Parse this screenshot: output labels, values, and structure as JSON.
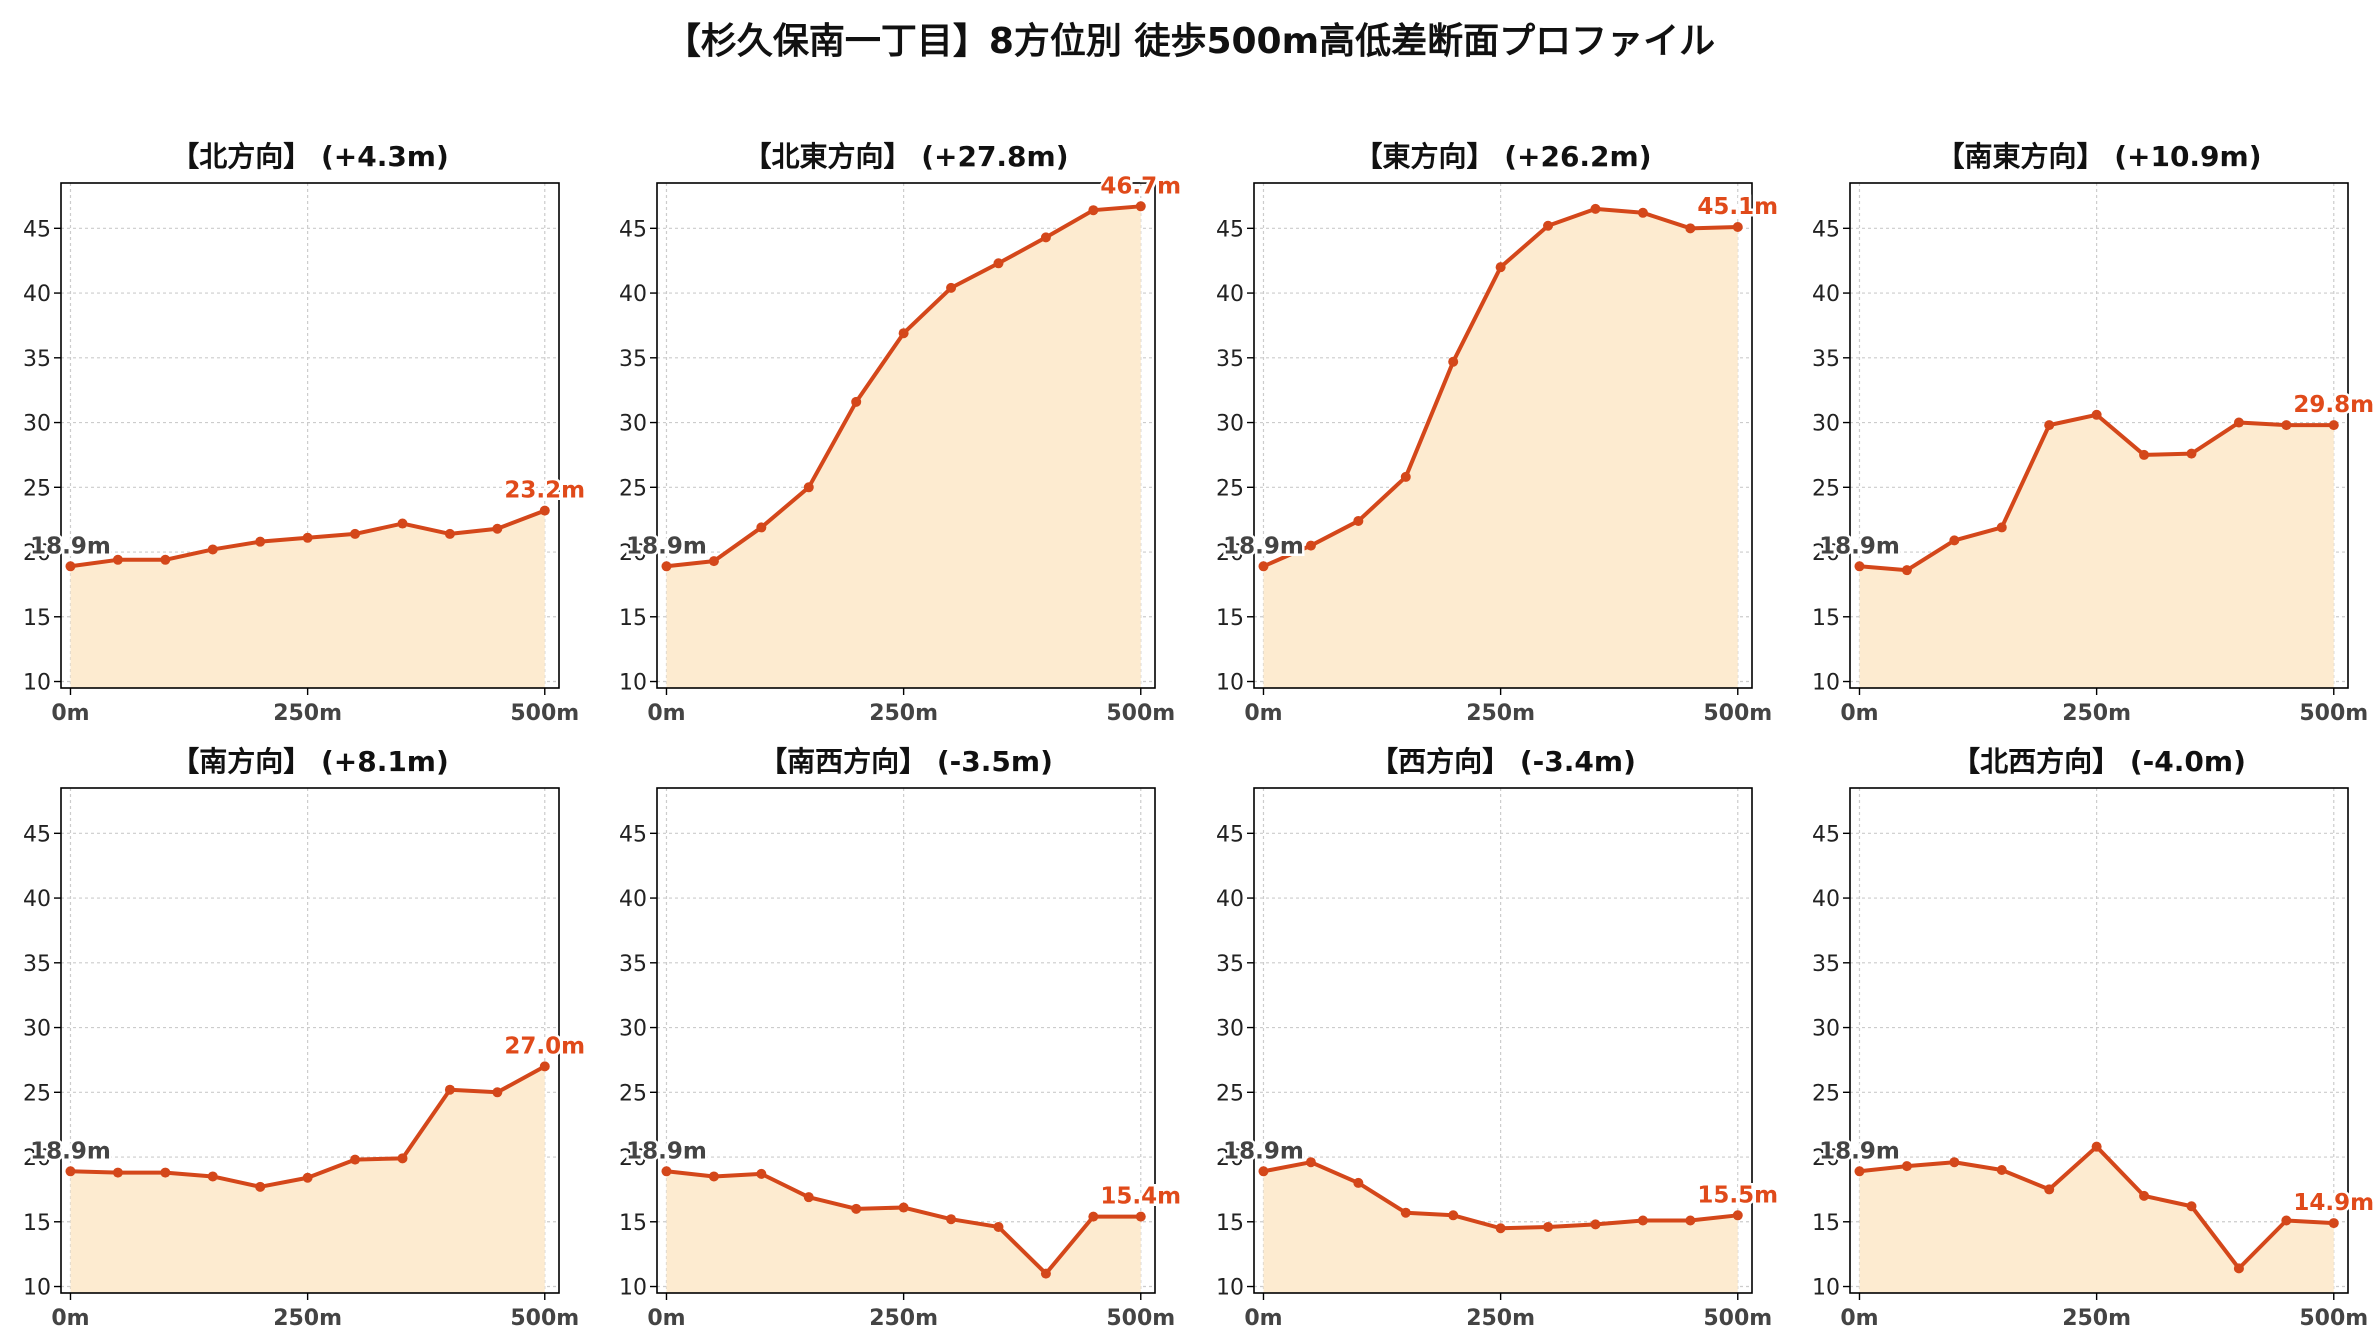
{
  "title": "【杉久保南一丁目】8方位別 徒歩500m高低差断面プロファイル",
  "colors": {
    "line": "#d4471a",
    "fill": "#fdebd0",
    "start_label": "#444444",
    "end_label": "#e04a1a",
    "grid": "#cccccc"
  },
  "chart_data": [
    {
      "type": "area",
      "title": "【北方向】 (+4.3m)",
      "x": [
        0,
        50,
        100,
        150,
        200,
        250,
        300,
        350,
        400,
        450,
        500
      ],
      "xticks": [
        0,
        250,
        500
      ],
      "xtick_labels": [
        "0m",
        "250m",
        "500m"
      ],
      "yticks": [
        10,
        15,
        20,
        25,
        30,
        35,
        40,
        45
      ],
      "ytick_labels": [
        "10",
        "15",
        "20",
        "25",
        "30",
        "35",
        "40",
        "45"
      ],
      "ylim": [
        9.5,
        48.5
      ],
      "xlim": [
        -10,
        515
      ],
      "grid": true,
      "start_label": "18.9m",
      "end_label": "23.2m",
      "values": [
        18.9,
        19.4,
        19.4,
        20.2,
        20.8,
        21.1,
        21.4,
        22.2,
        21.4,
        21.8,
        23.2
      ]
    },
    {
      "type": "area",
      "title": "【北東方向】 (+27.8m)",
      "x": [
        0,
        50,
        100,
        150,
        200,
        250,
        300,
        350,
        400,
        450,
        500
      ],
      "xticks": [
        0,
        250,
        500
      ],
      "xtick_labels": [
        "0m",
        "250m",
        "500m"
      ],
      "yticks": [
        10,
        15,
        20,
        25,
        30,
        35,
        40,
        45
      ],
      "ytick_labels": [
        "10",
        "15",
        "20",
        "25",
        "30",
        "35",
        "40",
        "45"
      ],
      "ylim": [
        9.5,
        48.5
      ],
      "xlim": [
        -10,
        515
      ],
      "grid": true,
      "start_label": "18.9m",
      "end_label": "46.7m",
      "values": [
        18.9,
        19.3,
        21.9,
        25.0,
        31.6,
        36.9,
        40.4,
        42.3,
        44.3,
        46.4,
        46.7
      ]
    },
    {
      "type": "area",
      "title": "【東方向】 (+26.2m)",
      "x": [
        0,
        50,
        100,
        150,
        200,
        250,
        300,
        350,
        400,
        450,
        500
      ],
      "xticks": [
        0,
        250,
        500
      ],
      "xtick_labels": [
        "0m",
        "250m",
        "500m"
      ],
      "yticks": [
        10,
        15,
        20,
        25,
        30,
        35,
        40,
        45
      ],
      "ytick_labels": [
        "10",
        "15",
        "20",
        "25",
        "30",
        "35",
        "40",
        "45"
      ],
      "ylim": [
        9.5,
        48.5
      ],
      "xlim": [
        -10,
        515
      ],
      "grid": true,
      "start_label": "18.9m",
      "end_label": "45.1m",
      "values": [
        18.9,
        20.5,
        22.4,
        25.8,
        34.7,
        42.0,
        45.2,
        46.5,
        46.2,
        45.0,
        45.1
      ]
    },
    {
      "type": "area",
      "title": "【南東方向】 (+10.9m)",
      "x": [
        0,
        50,
        100,
        150,
        200,
        250,
        300,
        350,
        400,
        450,
        500
      ],
      "xticks": [
        0,
        250,
        500
      ],
      "xtick_labels": [
        "0m",
        "250m",
        "500m"
      ],
      "yticks": [
        10,
        15,
        20,
        25,
        30,
        35,
        40,
        45
      ],
      "ytick_labels": [
        "10",
        "15",
        "20",
        "25",
        "30",
        "35",
        "40",
        "45"
      ],
      "ylim": [
        9.5,
        48.5
      ],
      "xlim": [
        -10,
        515
      ],
      "grid": true,
      "start_label": "18.9m",
      "end_label": "29.8m",
      "values": [
        18.9,
        18.6,
        20.9,
        21.9,
        29.8,
        30.6,
        27.5,
        27.6,
        30.0,
        29.8,
        29.8
      ]
    },
    {
      "type": "area",
      "title": "【南方向】 (+8.1m)",
      "x": [
        0,
        50,
        100,
        150,
        200,
        250,
        300,
        350,
        400,
        450,
        500
      ],
      "xticks": [
        0,
        250,
        500
      ],
      "xtick_labels": [
        "0m",
        "250m",
        "500m"
      ],
      "yticks": [
        10,
        15,
        20,
        25,
        30,
        35,
        40,
        45
      ],
      "ytick_labels": [
        "10",
        "15",
        "20",
        "25",
        "30",
        "35",
        "40",
        "45"
      ],
      "ylim": [
        9.5,
        48.5
      ],
      "xlim": [
        -10,
        515
      ],
      "grid": true,
      "start_label": "18.9m",
      "end_label": "27.0m",
      "values": [
        18.9,
        18.8,
        18.8,
        18.5,
        17.7,
        18.4,
        19.8,
        19.9,
        25.2,
        25.0,
        27.0
      ]
    },
    {
      "type": "area",
      "title": "【南西方向】 (-3.5m)",
      "x": [
        0,
        50,
        100,
        150,
        200,
        250,
        300,
        350,
        400,
        450,
        500
      ],
      "xticks": [
        0,
        250,
        500
      ],
      "xtick_labels": [
        "0m",
        "250m",
        "500m"
      ],
      "yticks": [
        10,
        15,
        20,
        25,
        30,
        35,
        40,
        45
      ],
      "ytick_labels": [
        "10",
        "15",
        "20",
        "25",
        "30",
        "35",
        "40",
        "45"
      ],
      "ylim": [
        9.5,
        48.5
      ],
      "xlim": [
        -10,
        515
      ],
      "grid": true,
      "start_label": "18.9m",
      "end_label": "15.4m",
      "values": [
        18.9,
        18.5,
        18.7,
        16.9,
        16.0,
        16.1,
        15.2,
        14.6,
        11.0,
        15.4,
        15.4
      ]
    },
    {
      "type": "area",
      "title": "【西方向】 (-3.4m)",
      "x": [
        0,
        50,
        100,
        150,
        200,
        250,
        300,
        350,
        400,
        450,
        500
      ],
      "xticks": [
        0,
        250,
        500
      ],
      "xtick_labels": [
        "0m",
        "250m",
        "500m"
      ],
      "yticks": [
        10,
        15,
        20,
        25,
        30,
        35,
        40,
        45
      ],
      "ytick_labels": [
        "10",
        "15",
        "20",
        "25",
        "30",
        "35",
        "40",
        "45"
      ],
      "ylim": [
        9.5,
        48.5
      ],
      "xlim": [
        -10,
        515
      ],
      "grid": true,
      "start_label": "18.9m",
      "end_label": "15.5m",
      "values": [
        18.9,
        19.6,
        18.0,
        15.7,
        15.5,
        14.5,
        14.6,
        14.8,
        15.1,
        15.1,
        15.5
      ]
    },
    {
      "type": "area",
      "title": "【北西方向】 (-4.0m)",
      "x": [
        0,
        50,
        100,
        150,
        200,
        250,
        300,
        350,
        400,
        450,
        500
      ],
      "xticks": [
        0,
        250,
        500
      ],
      "xtick_labels": [
        "0m",
        "250m",
        "500m"
      ],
      "yticks": [
        10,
        15,
        20,
        25,
        30,
        35,
        40,
        45
      ],
      "ytick_labels": [
        "10",
        "15",
        "20",
        "25",
        "30",
        "35",
        "40",
        "45"
      ],
      "ylim": [
        9.5,
        48.5
      ],
      "xlim": [
        -10,
        515
      ],
      "grid": true,
      "start_label": "18.9m",
      "end_label": "14.9m",
      "values": [
        18.9,
        19.3,
        19.6,
        19.0,
        17.5,
        20.8,
        17.0,
        16.2,
        11.4,
        15.1,
        14.9
      ]
    }
  ]
}
